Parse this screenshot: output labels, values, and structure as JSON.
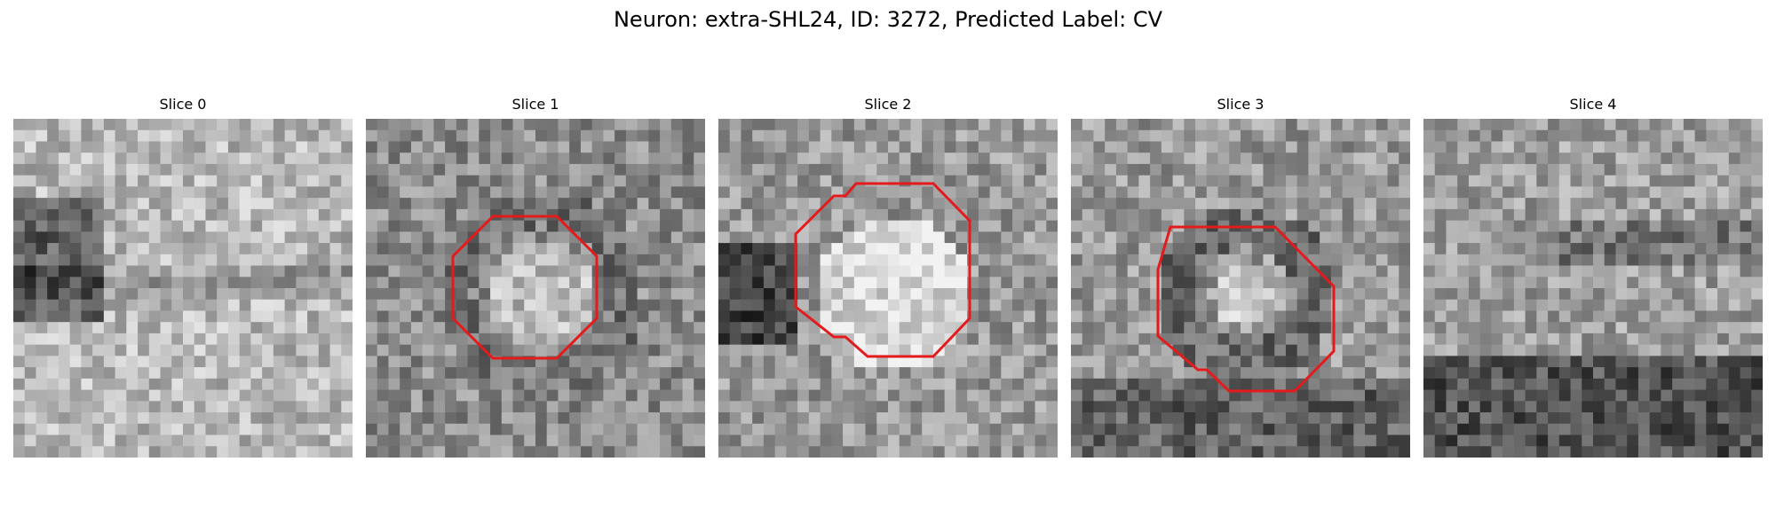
{
  "figure": {
    "title": "Neuron: extra-SHL24, ID: 3272, Predicted Label: CV"
  },
  "panels": [
    {
      "title": "Slice 0",
      "seed": 11,
      "roi": false
    },
    {
      "title": "Slice 1",
      "seed": 23,
      "roi": true
    },
    {
      "title": "Slice 2",
      "seed": 37,
      "roi": true
    },
    {
      "title": "Slice 3",
      "seed": 41,
      "roi": true
    },
    {
      "title": "Slice 4",
      "seed": 53,
      "roi": false
    }
  ],
  "colors": {
    "roi_outline": "#e41a1c",
    "colormap": "gray"
  }
}
